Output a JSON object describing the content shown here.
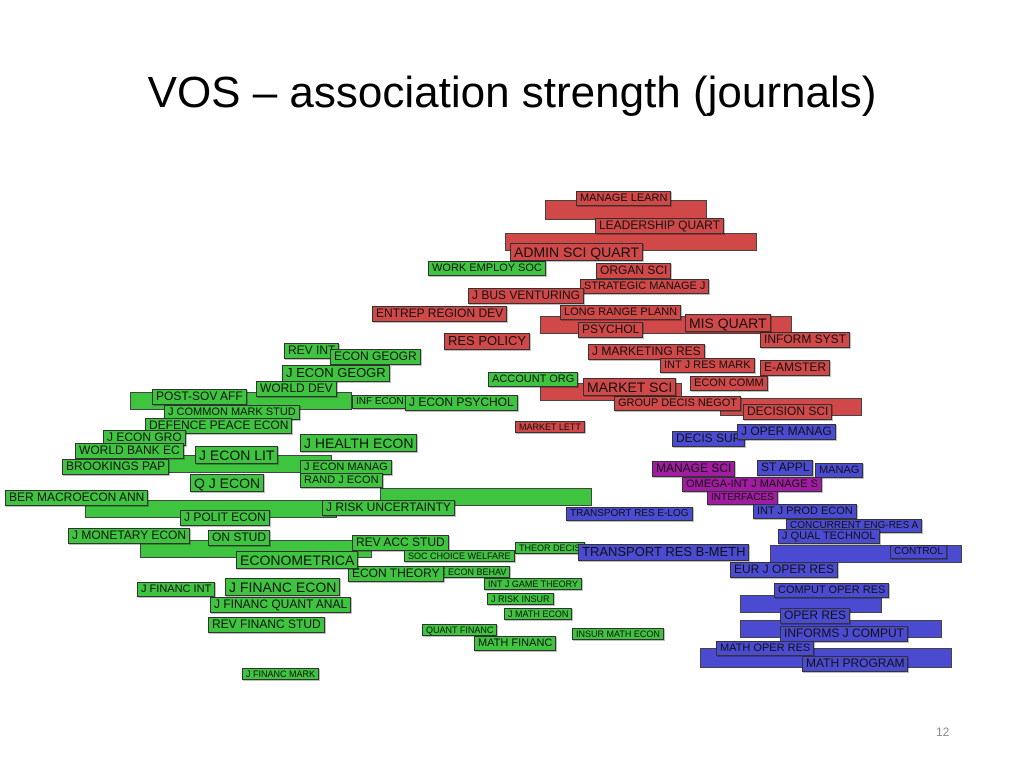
{
  "title": "VOS – association strength (journals)",
  "page_number": "12",
  "nodes": [
    {
      "label": "MANAGE LEARN",
      "color": "#d04848"
    },
    {
      "label": "LEADERSHIP QUART",
      "color": "#d04848"
    },
    {
      "label": "ADMIN SCI QUART",
      "color": "#d04848"
    },
    {
      "label": "ORGAN SCI",
      "color": "#d04848"
    },
    {
      "label": "STRATEGIC MANAGE J",
      "color": "#d04848"
    },
    {
      "label": "J BUS VENTURING",
      "color": "#d04848"
    },
    {
      "label": "ENTREP REGION DEV",
      "color": "#d04848"
    },
    {
      "label": "LONG RANGE PLANN",
      "color": "#d04848"
    },
    {
      "label": "PSYCHOL",
      "color": "#d04848"
    },
    {
      "label": "MIS QUART",
      "color": "#d04848"
    },
    {
      "label": "RES POLICY",
      "color": "#d04848"
    },
    {
      "label": "INFORM SYST",
      "color": "#d04848"
    },
    {
      "label": "J MARKETING RES",
      "color": "#d04848"
    },
    {
      "label": "INT J RES MARK",
      "color": "#d04848"
    },
    {
      "label": "E-AMSTER",
      "color": "#d04848"
    },
    {
      "label": "ECON COMM",
      "color": "#d04848"
    },
    {
      "label": "MARKET SCI",
      "color": "#d04848"
    },
    {
      "label": "GROUP DECIS NEGOT",
      "color": "#d04848"
    },
    {
      "label": "DECISION SCI",
      "color": "#d04848"
    },
    {
      "label": "MARKET LETT",
      "color": "#d04848"
    },
    {
      "label": "WORK EMPLOY SOC",
      "color": "#3ec43e"
    },
    {
      "label": "REV INT",
      "color": "#3ec43e"
    },
    {
      "label": "ECON GEOGR",
      "color": "#3ec43e"
    },
    {
      "label": "J ECON GEOGR",
      "color": "#3ec43e"
    },
    {
      "label": "ACCOUNT ORG",
      "color": "#3ec43e"
    },
    {
      "label": "WORLD DEV",
      "color": "#3ec43e"
    },
    {
      "label": "POST-SOV AFF",
      "color": "#3ec43e"
    },
    {
      "label": "INF ECON",
      "color": "#3ec43e"
    },
    {
      "label": "J ECON PSYCHOL",
      "color": "#3ec43e"
    },
    {
      "label": "J COMMON MARK STUD",
      "color": "#3ec43e"
    },
    {
      "label": "DEFENCE PEACE ECON",
      "color": "#3ec43e"
    },
    {
      "label": "J ECON GRO",
      "color": "#3ec43e"
    },
    {
      "label": "J HEALTH ECON",
      "color": "#3ec43e"
    },
    {
      "label": "WORLD BANK EC",
      "color": "#3ec43e"
    },
    {
      "label": "J ECON LIT",
      "color": "#3ec43e"
    },
    {
      "label": "BROOKINGS PAP",
      "color": "#3ec43e"
    },
    {
      "label": "J ECON MANAG",
      "color": "#3ec43e"
    },
    {
      "label": "Q J ECON",
      "color": "#3ec43e"
    },
    {
      "label": "RAND J ECON",
      "color": "#3ec43e"
    },
    {
      "label": "BER MACROECON ANN",
      "color": "#3ec43e"
    },
    {
      "label": "J RISK UNCERTAINTY",
      "color": "#3ec43e"
    },
    {
      "label": "J POLIT ECON",
      "color": "#3ec43e"
    },
    {
      "label": "J MONETARY ECON",
      "color": "#3ec43e"
    },
    {
      "label": "ON STUD",
      "color": "#3ec43e"
    },
    {
      "label": "REV ACC STUD",
      "color": "#3ec43e"
    },
    {
      "label": "ECONOMETRICA",
      "color": "#3ec43e"
    },
    {
      "label": "SOC CHOICE WELFARE",
      "color": "#3ec43e"
    },
    {
      "label": "THEOR DECIS",
      "color": "#3ec43e"
    },
    {
      "label": "ME ECON BEHAV",
      "color": "#3ec43e"
    },
    {
      "label": "ECON THEORY",
      "color": "#3ec43e"
    },
    {
      "label": "J FINANC ECON",
      "color": "#3ec43e"
    },
    {
      "label": "INT J GAME THEORY",
      "color": "#3ec43e"
    },
    {
      "label": "J FINANC INT",
      "color": "#3ec43e"
    },
    {
      "label": "J RISK INSUR",
      "color": "#3ec43e"
    },
    {
      "label": "J FINANC QUANT ANAL",
      "color": "#3ec43e"
    },
    {
      "label": "J MATH ECON",
      "color": "#3ec43e"
    },
    {
      "label": "REV FINANC STUD",
      "color": "#3ec43e"
    },
    {
      "label": "QUANT FINANC",
      "color": "#3ec43e"
    },
    {
      "label": "INSUR MATH ECON",
      "color": "#3ec43e"
    },
    {
      "label": "MATH FINANC",
      "color": "#3ec43e"
    },
    {
      "label": "J FINANC MARK",
      "color": "#3ec43e"
    },
    {
      "label": "DECIS SUP",
      "color": "#4b4bd2"
    },
    {
      "label": "J OPER MANAG",
      "color": "#4b4bd2"
    },
    {
      "label": "MANAGE SCI",
      "color": "#a21ca2"
    },
    {
      "label": "ST APPL",
      "color": "#4b4bd2"
    },
    {
      "label": "MANAG",
      "color": "#4b4bd2"
    },
    {
      "label": "OMEGA-INT J MANAGE S",
      "color": "#a21ca2"
    },
    {
      "label": "INTERFACES",
      "color": "#a21ca2"
    },
    {
      "label": "TRANSPORT RES E-LOG",
      "color": "#4b4bd2"
    },
    {
      "label": "INT J PROD ECON",
      "color": "#4b4bd2"
    },
    {
      "label": "CONCURRENT ENG-RES A",
      "color": "#4b4bd2"
    },
    {
      "label": "J QUAL TECHNOL",
      "color": "#4b4bd2"
    },
    {
      "label": "TRANSPORT RES B-METH",
      "color": "#4b4bd2"
    },
    {
      "label": "CONTROL",
      "color": "#4b4bd2"
    },
    {
      "label": "EUR J OPER RES",
      "color": "#4b4bd2"
    },
    {
      "label": "COMPUT OPER RES",
      "color": "#4b4bd2"
    },
    {
      "label": "OPER RES",
      "color": "#4b4bd2"
    },
    {
      "label": "INFORMS J COMPUT",
      "color": "#4b4bd2"
    },
    {
      "label": "MATH OPER RES",
      "color": "#4b4bd2"
    },
    {
      "label": "MATH PROGRAM",
      "color": "#4b4bd2"
    }
  ]
}
